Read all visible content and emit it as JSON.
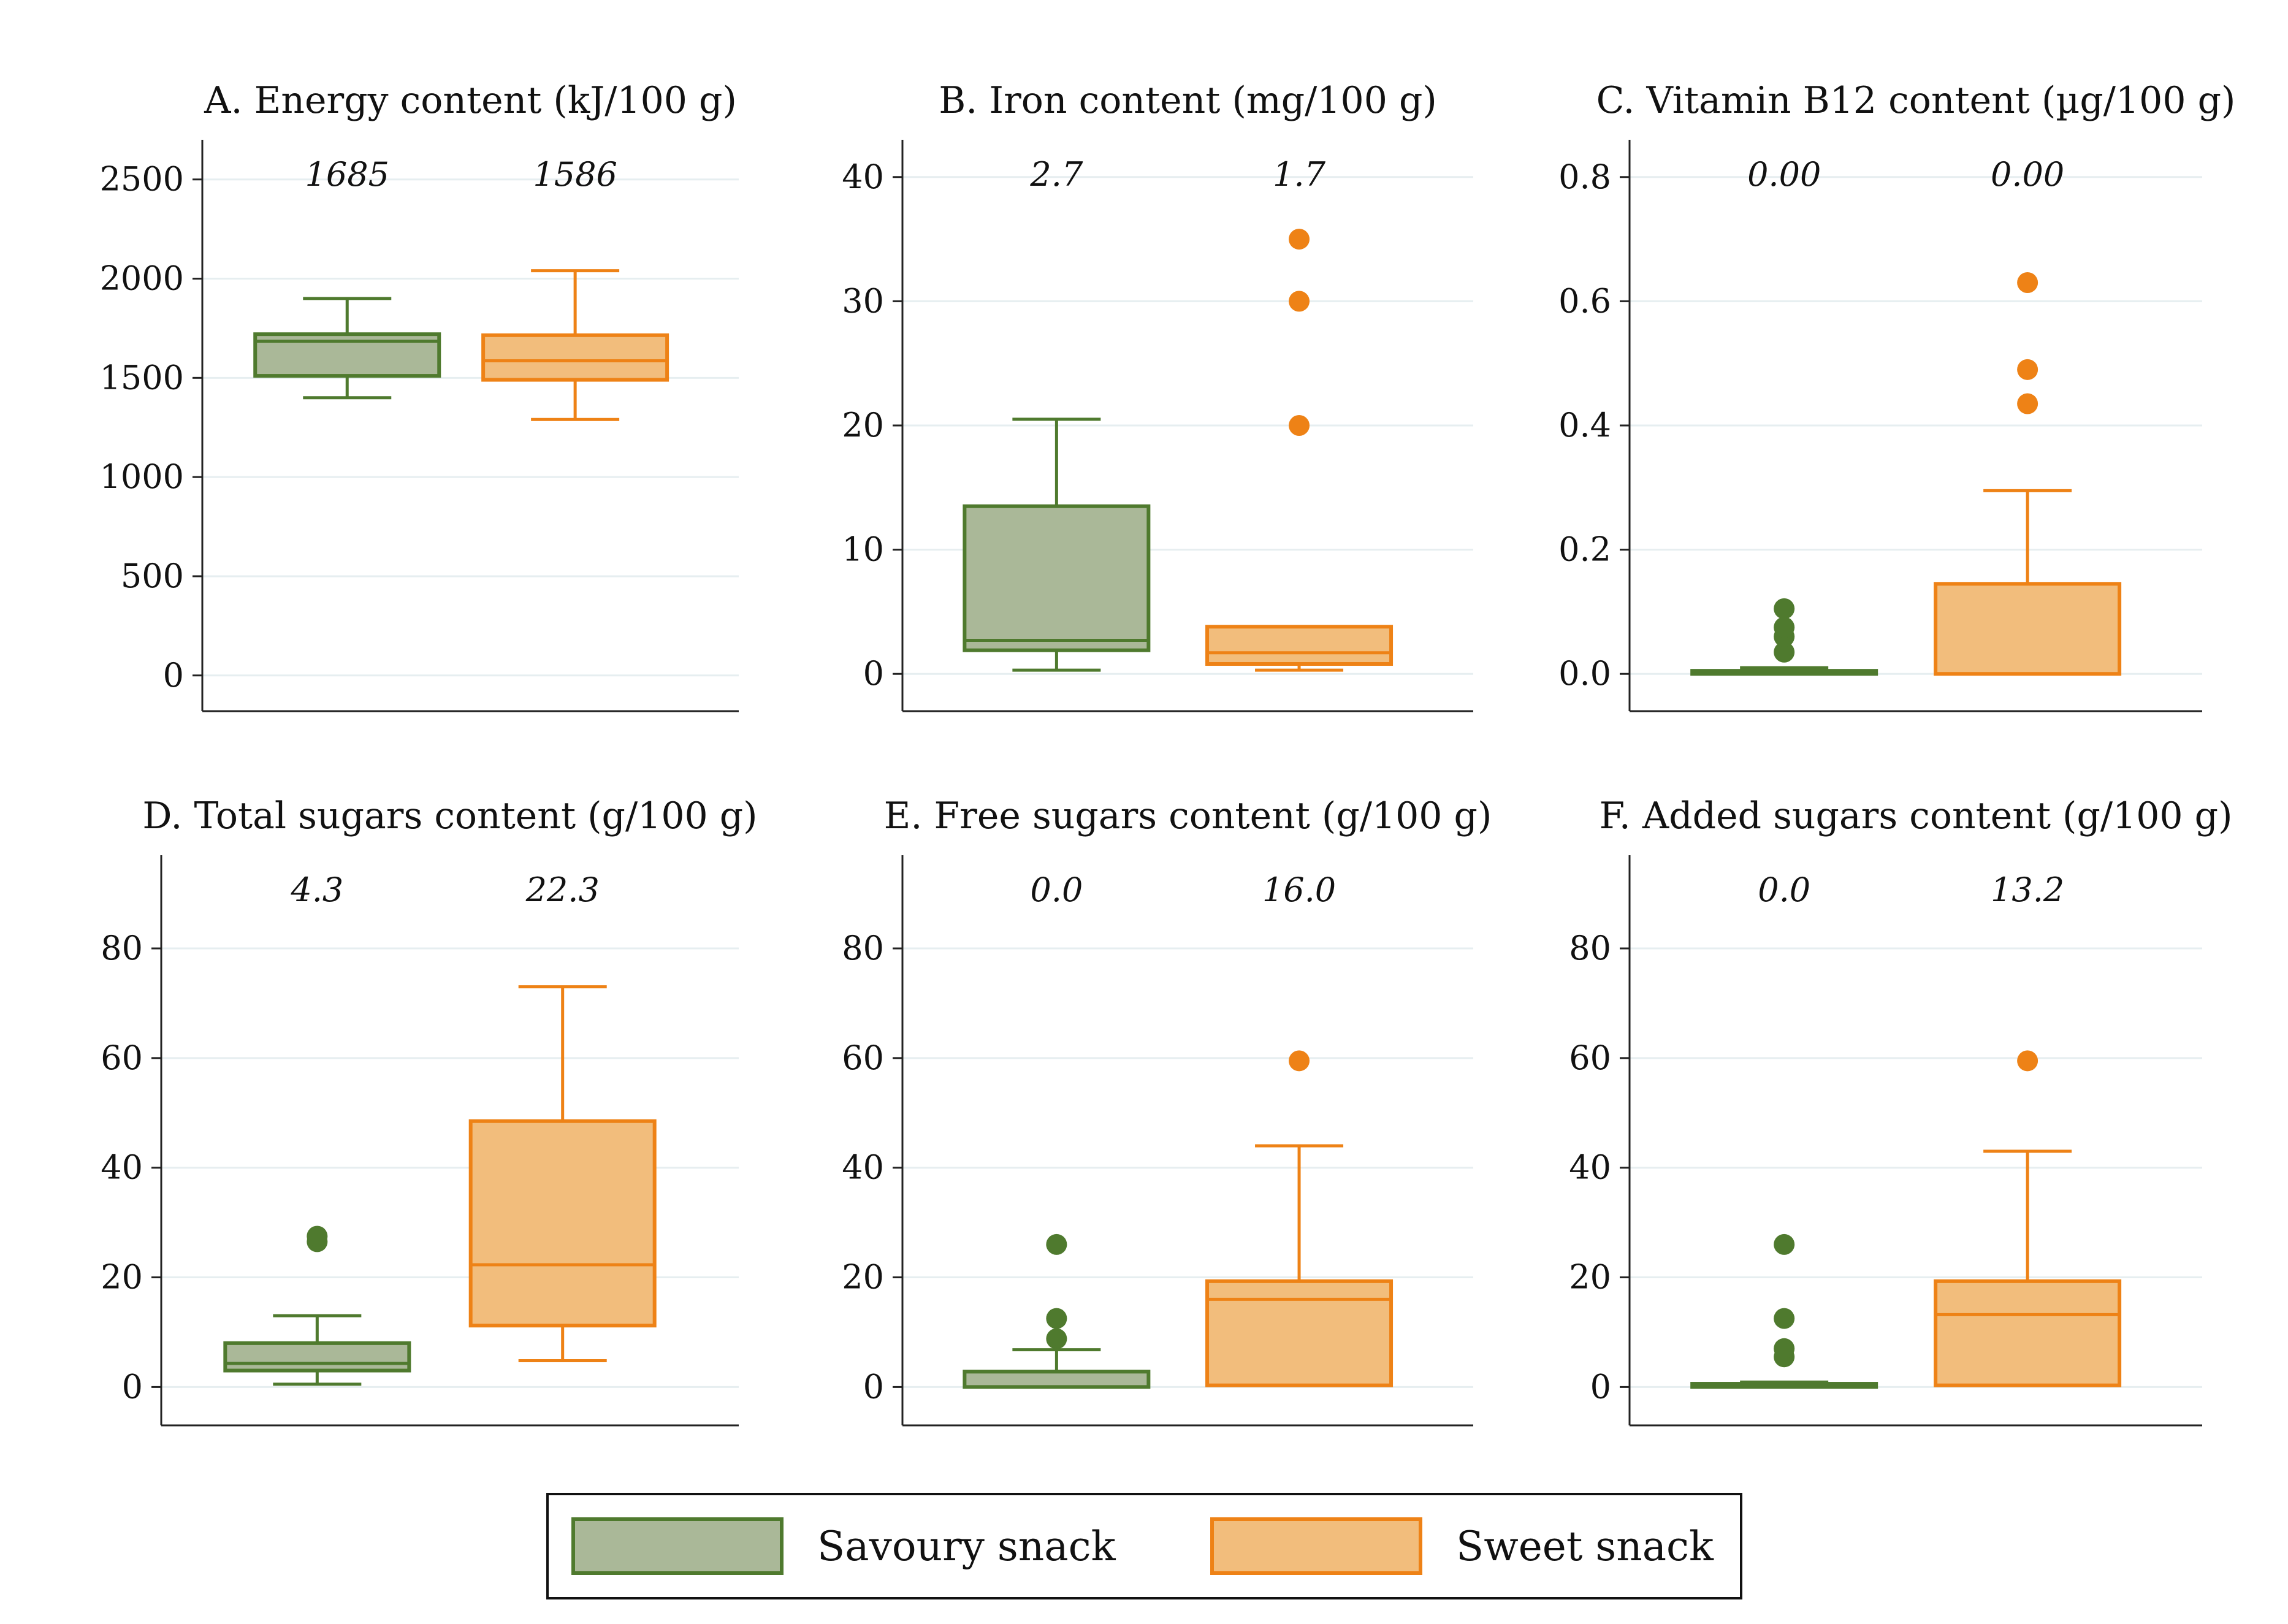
{
  "colors": {
    "savoury_fill": "#aab898",
    "savoury_stroke": "#4f7a2e",
    "sweet_fill": "#f2bd7c",
    "sweet_stroke": "#ee8216",
    "grid": "#e6eef0",
    "axis": "#222222"
  },
  "legend": {
    "items": [
      {
        "label": "Savoury snack",
        "color_key": "savoury"
      },
      {
        "label": "Sweet snack",
        "color_key": "sweet"
      }
    ]
  },
  "chart_data": [
    {
      "type": "boxplot",
      "title": "A. Energy content (kJ/100 g)",
      "ylim": [
        -180,
        2700
      ],
      "yticks": [
        0,
        500,
        1000,
        1500,
        2000,
        2500
      ],
      "ytick_labels": [
        "0",
        "500",
        "1000",
        "1500",
        "2000",
        "2500"
      ],
      "median_labels": [
        "1685",
        "1586"
      ],
      "series": [
        {
          "name": "Savoury snack",
          "whisker_low": 1400,
          "q1": 1510,
          "median": 1685,
          "q3": 1720,
          "whisker_high": 1900,
          "outliers": []
        },
        {
          "name": "Sweet snack",
          "whisker_low": 1290,
          "q1": 1490,
          "median": 1586,
          "q3": 1715,
          "whisker_high": 2040,
          "outliers": []
        }
      ]
    },
    {
      "type": "boxplot",
      "title": "B. Iron content (mg/100 g)",
      "ylim": [
        -3,
        43
      ],
      "yticks": [
        0,
        10,
        20,
        30,
        40
      ],
      "ytick_labels": [
        "0",
        "10",
        "20",
        "30",
        "40"
      ],
      "median_labels": [
        "2.7",
        "1.7"
      ],
      "series": [
        {
          "name": "Savoury snack",
          "whisker_low": 0.3,
          "q1": 1.9,
          "median": 2.7,
          "q3": 13.5,
          "whisker_high": 20.5,
          "outliers": []
        },
        {
          "name": "Sweet snack",
          "whisker_low": 0.3,
          "q1": 0.8,
          "median": 1.7,
          "q3": 3.8,
          "whisker_high": 3.8,
          "outliers": [
            20,
            30,
            35
          ]
        }
      ]
    },
    {
      "type": "boxplot",
      "title": "C. Vitamin B12 content (µg/100 g)",
      "ylim": [
        -0.06,
        0.86
      ],
      "yticks": [
        0.0,
        0.2,
        0.4,
        0.6,
        0.8
      ],
      "ytick_labels": [
        "0.0",
        "0.2",
        "0.4",
        "0.6",
        "0.8"
      ],
      "median_labels": [
        "0.00",
        "0.00"
      ],
      "series": [
        {
          "name": "Savoury snack",
          "whisker_low": 0.0,
          "q1": 0.0,
          "median": 0.0,
          "q3": 0.005,
          "whisker_high": 0.01,
          "outliers": [
            0.035,
            0.06,
            0.075,
            0.105
          ]
        },
        {
          "name": "Sweet snack",
          "whisker_low": 0.0,
          "q1": 0.0,
          "median": 0.0,
          "q3": 0.145,
          "whisker_high": 0.295,
          "outliers": [
            0.435,
            0.49,
            0.63
          ]
        }
      ]
    },
    {
      "type": "boxplot",
      "title": "D. Total sugars content (g/100 g)",
      "ylim": [
        -7,
        97
      ],
      "yticks": [
        0,
        20,
        40,
        60,
        80
      ],
      "ytick_labels": [
        "0",
        "20",
        "40",
        "60",
        "80"
      ],
      "median_labels": [
        "4.3",
        "22.3"
      ],
      "series": [
        {
          "name": "Savoury snack",
          "whisker_low": 0.5,
          "q1": 3.0,
          "median": 4.3,
          "q3": 8.0,
          "whisker_high": 13.0,
          "outliers": [
            26.5,
            27.5
          ]
        },
        {
          "name": "Sweet snack",
          "whisker_low": 4.8,
          "q1": 11.2,
          "median": 22.3,
          "q3": 48.5,
          "whisker_high": 73.0,
          "outliers": []
        }
      ]
    },
    {
      "type": "boxplot",
      "title": "E. Free sugars content (g/100 g)",
      "ylim": [
        -7,
        97
      ],
      "yticks": [
        0,
        20,
        40,
        60,
        80
      ],
      "ytick_labels": [
        "0",
        "20",
        "40",
        "60",
        "80"
      ],
      "median_labels": [
        "0.0",
        "16.0"
      ],
      "series": [
        {
          "name": "Savoury snack",
          "whisker_low": 0.0,
          "q1": 0.0,
          "median": 0.0,
          "q3": 2.8,
          "whisker_high": 6.8,
          "outliers": [
            8.8,
            12.5,
            26.0
          ]
        },
        {
          "name": "Sweet snack",
          "whisker_low": 0.3,
          "q1": 0.3,
          "median": 16.0,
          "q3": 19.3,
          "whisker_high": 44.0,
          "outliers": [
            59.5
          ]
        }
      ]
    },
    {
      "type": "boxplot",
      "title": "F. Added sugars content (g/100 g)",
      "ylim": [
        -7,
        97
      ],
      "yticks": [
        0,
        20,
        40,
        60,
        80
      ],
      "ytick_labels": [
        "0",
        "20",
        "40",
        "60",
        "80"
      ],
      "median_labels": [
        "0.0",
        "13.2"
      ],
      "series": [
        {
          "name": "Savoury snack",
          "whisker_low": 0.0,
          "q1": 0.0,
          "median": 0.0,
          "q3": 0.6,
          "whisker_high": 0.9,
          "outliers": [
            5.5,
            7.0,
            12.5,
            26.0
          ]
        },
        {
          "name": "Sweet snack",
          "whisker_low": 0.3,
          "q1": 0.3,
          "median": 13.2,
          "q3": 19.3,
          "whisker_high": 43.0,
          "outliers": [
            59.5
          ]
        }
      ]
    }
  ]
}
